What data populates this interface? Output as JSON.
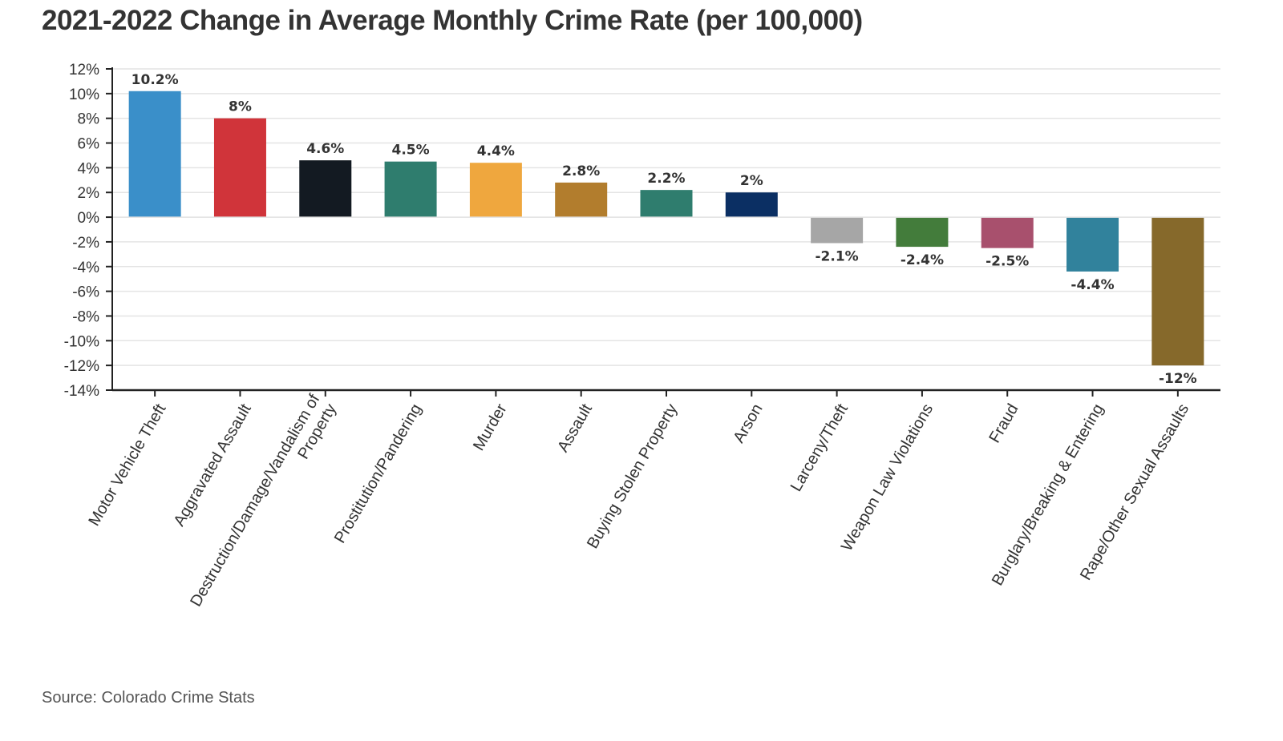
{
  "chart_data": {
    "type": "bar",
    "title": "2021-2022 Change in Average Monthly Crime Rate (per 100,000)",
    "xlabel": "",
    "ylabel": "",
    "ylim": [
      -14,
      12
    ],
    "yticks": [
      12,
      10,
      8,
      6,
      4,
      2,
      0,
      -2,
      -4,
      -6,
      -8,
      -10,
      -12,
      -14
    ],
    "ytick_labels": [
      "12%",
      "10%",
      "8%",
      "6%",
      "4%",
      "2%",
      "0%",
      "-2%",
      "-4%",
      "-6%",
      "-8%",
      "-10%",
      "-12%",
      "-14%"
    ],
    "grid": true,
    "legend": "none",
    "categories": [
      [
        "Motor Vehicle Theft"
      ],
      [
        "Aggravated Assault"
      ],
      [
        "Destruction/Damage/Vandalism of",
        "Property"
      ],
      [
        "Prostitution/Pandering"
      ],
      [
        "Murder"
      ],
      [
        "Assault"
      ],
      [
        "Buying Stolen Property"
      ],
      [
        "Arson"
      ],
      [
        "Larceny/Theft"
      ],
      [
        "Weapon Law Violations"
      ],
      [
        "Fraud"
      ],
      [
        "Burglary/Breaking & Entering"
      ],
      [
        "Rape/Other Sexual Assaults"
      ]
    ],
    "values": [
      10.2,
      8,
      4.6,
      4.5,
      4.4,
      2.8,
      2.2,
      2,
      -2.1,
      -2.4,
      -2.5,
      -4.4,
      -12
    ],
    "data_labels": [
      "10.2%",
      "8%",
      "4.6%",
      "4.5%",
      "4.4%",
      "2.8%",
      "2.2%",
      "2%",
      "-2.1%",
      "-2.4%",
      "-2.5%",
      "-4.4%",
      "-12%"
    ],
    "colors": [
      "#3a8fc9",
      "#d0343a",
      "#131a22",
      "#2f7d6e",
      "#efa73e",
      "#b27d2d",
      "#2f7d6e",
      "#0b2f63",
      "#a6a6a6",
      "#437c3b",
      "#a8506d",
      "#31829c",
      "#86692b"
    ]
  },
  "source": "Source: Colorado Crime Stats"
}
